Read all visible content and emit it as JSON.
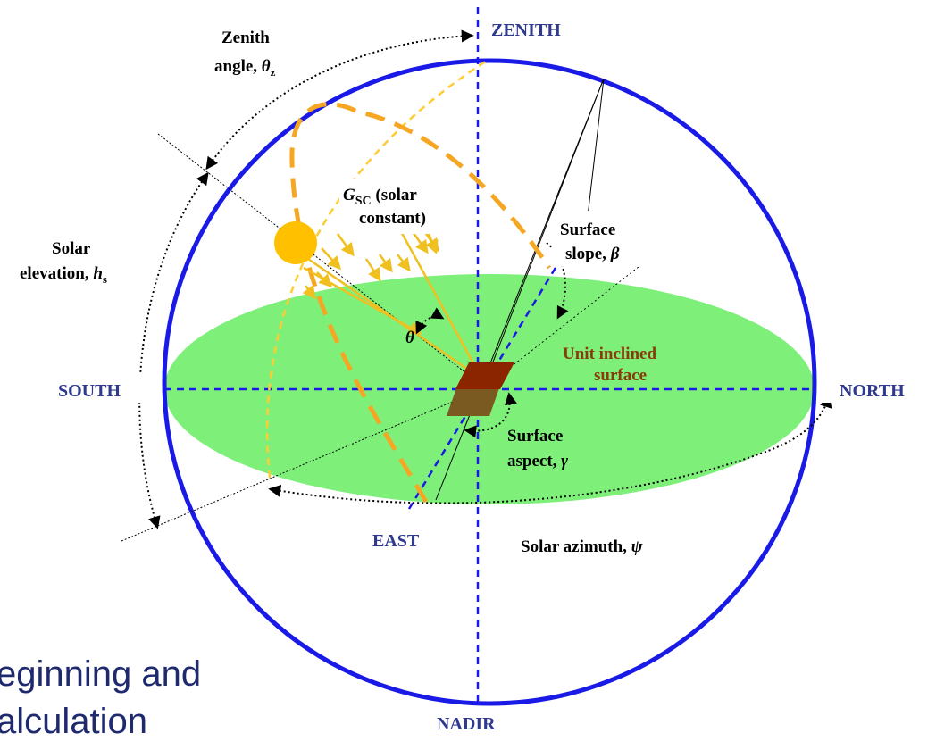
{
  "labels": {
    "zenith": "ZENITH",
    "nadir": "NADIR",
    "south": "SOUTH",
    "north": "NORTH",
    "east": "EAST",
    "zenith_angle_line1": "Zenith",
    "zenith_angle_line2": "angle, ",
    "zenith_angle_sym": "θ",
    "zenith_angle_sub": "z",
    "solar_elevation_line1": "Solar",
    "solar_elevation_line2": "elevation, ",
    "solar_elevation_sym": "h",
    "solar_elevation_sub": "s",
    "gsc_sym": "G",
    "gsc_sub": "SC",
    "gsc_line1_rest": " (solar",
    "gsc_line2": "constant)",
    "theta": "θ",
    "surface_slope_line1": "Surface",
    "surface_slope_line2": "slope, ",
    "surface_slope_sym": "β",
    "unit_inclined_line1": "Unit inclined",
    "unit_inclined_line2": "surface",
    "surface_aspect_line1": "Surface",
    "surface_aspect_line2": "aspect, ",
    "surface_aspect_sym": "γ",
    "solar_azimuth": "Solar azimuth, ",
    "solar_azimuth_sym": "ψ"
  },
  "background_text": {
    "line1": "eginning and",
    "line2": "alculation"
  },
  "colors": {
    "sphere": "#1a1ae6",
    "axes": "#1a1ae6",
    "horizon_plane": "#7ef07a",
    "sun": "#ffc000",
    "sun_path_main": "#f5a623",
    "sun_path_thin": "#ffcc33",
    "rays": "#f0c020",
    "surface": "#8b2500",
    "surface_shadow": "#7a5a20",
    "unit_inclined_text": "#8b3a0a",
    "axis_label_blue": "#2f3a8f"
  }
}
